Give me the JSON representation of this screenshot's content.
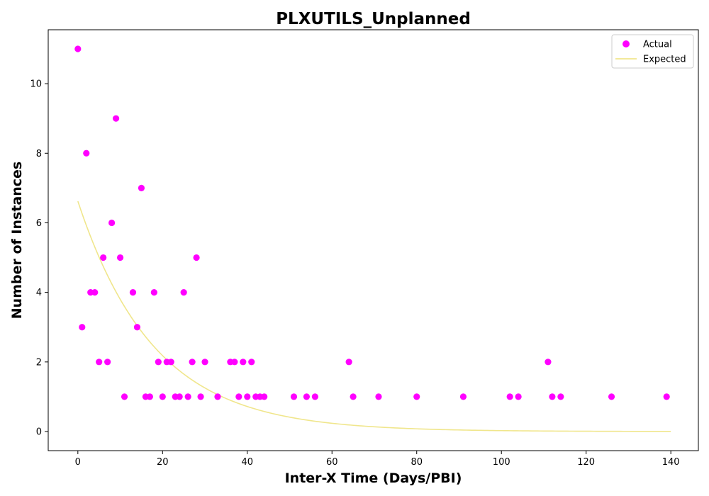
{
  "chart_data": {
    "type": "scatter",
    "title": "PLXUTILS_Unplanned",
    "xlabel": "Inter-X Time (Days/PBI)",
    "ylabel": "Number of Instances",
    "xlim": [
      -7,
      146.5
    ],
    "ylim": [
      -0.55,
      11.55
    ],
    "xticks": [
      0,
      20,
      40,
      60,
      80,
      100,
      120,
      140
    ],
    "yticks": [
      0,
      2,
      4,
      6,
      8,
      10
    ],
    "grid": false,
    "legend_position": "top-right",
    "colors": {
      "actual": "#ff00ff",
      "expected": "#f0e68c"
    },
    "series": [
      {
        "name": "Actual",
        "kind": "scatter",
        "points": [
          [
            0,
            11
          ],
          [
            1,
            3
          ],
          [
            2,
            8
          ],
          [
            3,
            4
          ],
          [
            4,
            4
          ],
          [
            5,
            2
          ],
          [
            6,
            5
          ],
          [
            7,
            2
          ],
          [
            8,
            6
          ],
          [
            9,
            9
          ],
          [
            10,
            5
          ],
          [
            11,
            1
          ],
          [
            13,
            4
          ],
          [
            14,
            3
          ],
          [
            15,
            7
          ],
          [
            16,
            1
          ],
          [
            17,
            1
          ],
          [
            18,
            4
          ],
          [
            19,
            2
          ],
          [
            20,
            1
          ],
          [
            21,
            2
          ],
          [
            22,
            2
          ],
          [
            23,
            1
          ],
          [
            24,
            1
          ],
          [
            25,
            4
          ],
          [
            26,
            1
          ],
          [
            27,
            2
          ],
          [
            28,
            5
          ],
          [
            29,
            1
          ],
          [
            30,
            2
          ],
          [
            33,
            1
          ],
          [
            36,
            2
          ],
          [
            37,
            2
          ],
          [
            38,
            1
          ],
          [
            39,
            2
          ],
          [
            40,
            1
          ],
          [
            41,
            2
          ],
          [
            42,
            1
          ],
          [
            43,
            1
          ],
          [
            44,
            1
          ],
          [
            51,
            1
          ],
          [
            54,
            1
          ],
          [
            56,
            1
          ],
          [
            64,
            2
          ],
          [
            65,
            1
          ],
          [
            71,
            1
          ],
          [
            80,
            1
          ],
          [
            91,
            1
          ],
          [
            102,
            1
          ],
          [
            104,
            1
          ],
          [
            111,
            2
          ],
          [
            112,
            1
          ],
          [
            114,
            1
          ],
          [
            126,
            1
          ],
          [
            139,
            1
          ]
        ]
      },
      {
        "name": "Expected",
        "kind": "line",
        "curve": {
          "form": "a*exp(-b*x)",
          "a": 6.62,
          "b": 0.0555,
          "x_range": [
            0,
            140
          ]
        }
      }
    ]
  }
}
